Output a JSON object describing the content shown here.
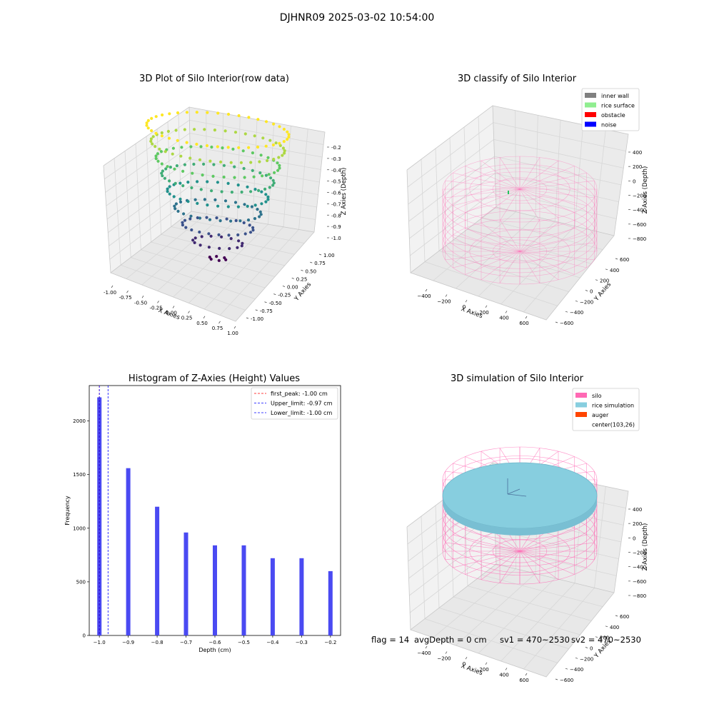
{
  "suptitle": "DJHNR09 2025-03-02 10:54:00",
  "colors": {
    "hist_bar": "#4a4af2",
    "first_peak": "#ff0000",
    "limits": "#0000ff",
    "silo_wire": "#ff69b4",
    "inner_wall": "#808080",
    "rice_surface": "#90ee90",
    "obstacle": "#ff0000",
    "noise": "#0000ff",
    "rice_simulation": "#87cedf",
    "auger": "#ff4500",
    "pane": "#f2f2f2",
    "grid": "#d7d7d7"
  },
  "chart_data": [
    {
      "type": "scatter",
      "projection": "3d",
      "colormap": "viridis",
      "title": "3D Plot of Silo Interior(row data)",
      "xlabel": "X Axies",
      "ylabel": "Y Axies",
      "zlabel": "Z Axies (Depth)",
      "xlim": [
        -1.0,
        1.0
      ],
      "ylim": [
        -1.0,
        1.0
      ],
      "zlim": [
        -1.0,
        -0.2
      ],
      "xticks": [
        "-1.00",
        "-0.75",
        "-0.50",
        "-0.25",
        "0.00",
        "0.25",
        "0.50",
        "0.75",
        "1.00"
      ],
      "yticks": [
        "-1.00",
        "-0.75",
        "-0.50",
        "-0.25",
        "0.00",
        "0.25",
        "0.50",
        "0.75",
        "1.00"
      ],
      "zticks": [
        "-0.2",
        "-0.3",
        "-0.4",
        "-0.5",
        "-0.6",
        "-0.7",
        "-0.8",
        "-0.9",
        "-1.0"
      ],
      "z_levels": [
        -1.0,
        -0.9,
        -0.8,
        -0.7,
        -0.6,
        -0.5,
        -0.4,
        -0.3,
        -0.2
      ],
      "ring_radius": [
        0.12,
        0.35,
        0.5,
        0.61,
        0.71,
        0.79,
        0.87,
        0.94,
        1.0
      ],
      "ring_points": [
        6,
        15,
        22,
        26,
        30,
        34,
        36,
        40,
        42
      ]
    },
    {
      "type": "scatter",
      "projection": "3d",
      "title": "3D classify of Silo Interior",
      "xlabel": "X Axies",
      "ylabel": "Y Axies",
      "zlabel": "Z Axies (Depth)",
      "xlim": [
        -500,
        700
      ],
      "ylim": [
        -600,
        600
      ],
      "zlim": [
        -850,
        450
      ],
      "xticks": [
        "−400",
        "−200",
        "0",
        "200",
        "400",
        "600"
      ],
      "yticks": [
        "−600",
        "−400",
        "−200",
        "0",
        "200",
        "400",
        "600"
      ],
      "zticks": [
        "400",
        "200",
        "0",
        "−200",
        "−400",
        "−600",
        "−800"
      ],
      "legend": [
        "inner wall",
        "rice surface",
        "obstacle",
        "noise"
      ],
      "legend_loc": "upper right"
    },
    {
      "type": "bar",
      "title": "Histogram of Z-Axies (Height) Values",
      "xlabel": "Depth (cm)",
      "ylabel": "Frequency",
      "x": [
        -1.0,
        -0.9,
        -0.8,
        -0.7,
        -0.6,
        -0.5,
        -0.4,
        -0.3,
        -0.2
      ],
      "values": [
        2220,
        1560,
        1200,
        960,
        840,
        840,
        720,
        720,
        600
      ],
      "xlim": [
        -1.035,
        -0.165
      ],
      "ylim": [
        0,
        2330
      ],
      "xticks": [
        "−1.0",
        "−0.9",
        "−0.8",
        "−0.7",
        "−0.6",
        "−0.5",
        "−0.4",
        "−0.3",
        "−0.2"
      ],
      "yticks": [
        "0",
        "500",
        "1000",
        "1500",
        "2000"
      ],
      "vlines": [
        {
          "label": "first_peak: -1.00 cm",
          "x": -1.0,
          "style": "first_peak"
        },
        {
          "label": "Upper_limit: -0.97 cm",
          "x": -0.97,
          "style": "limits"
        },
        {
          "label": "Lower_limit: -1.00 cm",
          "x": -1.0,
          "style": "limits"
        }
      ],
      "legend_loc": "upper right"
    },
    {
      "type": "surface",
      "projection": "3d",
      "title": "3D simulation of Silo Interior",
      "xlabel": "X Axies",
      "ylabel": "Y Axies",
      "zlabel": "Z Axies (Depth)",
      "xlim": [
        -500,
        700
      ],
      "ylim": [
        -600,
        600
      ],
      "zlim": [
        -850,
        450
      ],
      "xticks": [
        "−400",
        "−200",
        "0",
        "200",
        "400",
        "600"
      ],
      "yticks": [
        "−600",
        "−400",
        "−200",
        "0",
        "200",
        "400",
        "600"
      ],
      "zticks": [
        "400",
        "200",
        "0",
        "−200",
        "−400",
        "−600",
        "−800"
      ],
      "legend": [
        "silo",
        "rice simulation",
        "auger",
        "center(103,26)"
      ],
      "legend_loc": "upper right"
    }
  ],
  "footer": {
    "flag": "flag = 14",
    "avg_depth": "avgDepth = 0 cm",
    "sv1": "sv1 = 470~2530",
    "sv2": "sv2 = 470~2530"
  }
}
